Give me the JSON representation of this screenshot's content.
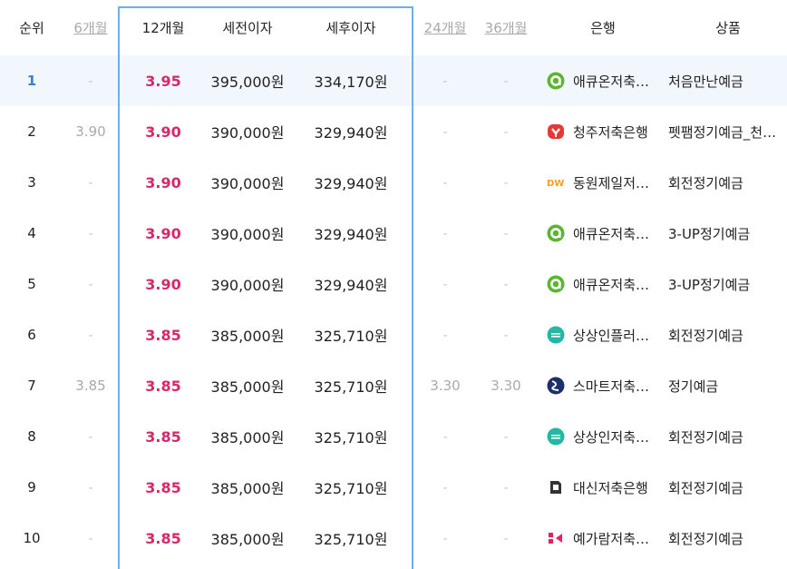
{
  "header": {
    "rank": "순위",
    "m6": "6개월",
    "m12": "12개월",
    "pre_tax": "세전이자",
    "post_tax": "세후이자",
    "m24": "24개월",
    "m36": "36개월",
    "bank": "은행",
    "product": "상품"
  },
  "colors": {
    "rate": "#d6286a",
    "highlight": "#6fb0ec",
    "selected_row": "#f2f7fd"
  },
  "rows": [
    {
      "rank": "1",
      "m6": "-",
      "m12": "3.95",
      "pre": "395,000원",
      "post": "334,170원",
      "m24": "-",
      "m36": "-",
      "logo": "acuon-logo",
      "bank": "애큐온저축…",
      "product": "처음만난예금"
    },
    {
      "rank": "2",
      "m6": "3.90",
      "m12": "3.90",
      "pre": "390,000원",
      "post": "329,940원",
      "m24": "-",
      "m36": "-",
      "logo": "cheongju-logo",
      "bank": "청주저축은행",
      "product": "펫팸정기예금_천…"
    },
    {
      "rank": "3",
      "m6": "-",
      "m12": "3.90",
      "pre": "390,000원",
      "post": "329,940원",
      "m24": "-",
      "m36": "-",
      "logo": "dongwon-logo",
      "bank": "동원제일저…",
      "product": "회전정기예금"
    },
    {
      "rank": "4",
      "m6": "-",
      "m12": "3.90",
      "pre": "390,000원",
      "post": "329,940원",
      "m24": "-",
      "m36": "-",
      "logo": "acuon-logo",
      "bank": "애큐온저축…",
      "product": "3-UP정기예금"
    },
    {
      "rank": "5",
      "m6": "-",
      "m12": "3.90",
      "pre": "390,000원",
      "post": "329,940원",
      "m24": "-",
      "m36": "-",
      "logo": "acuon-logo",
      "bank": "애큐온저축…",
      "product": "3-UP정기예금"
    },
    {
      "rank": "6",
      "m6": "-",
      "m12": "3.85",
      "pre": "385,000원",
      "post": "325,710원",
      "m24": "-",
      "m36": "-",
      "logo": "sangsangin-logo",
      "bank": "상상인플러…",
      "product": "회전정기예금"
    },
    {
      "rank": "7",
      "m6": "3.85",
      "m12": "3.85",
      "pre": "385,000원",
      "post": "325,710원",
      "m24": "3.30",
      "m36": "3.30",
      "logo": "smart-logo",
      "bank": "스마트저축…",
      "product": "정기예금"
    },
    {
      "rank": "8",
      "m6": "-",
      "m12": "3.85",
      "pre": "385,000원",
      "post": "325,710원",
      "m24": "-",
      "m36": "-",
      "logo": "sangsangin-logo",
      "bank": "상상인저축…",
      "product": "회전정기예금"
    },
    {
      "rank": "9",
      "m6": "-",
      "m12": "3.85",
      "pre": "385,000원",
      "post": "325,710원",
      "m24": "-",
      "m36": "-",
      "logo": "daishin-logo",
      "bank": "대신저축은행",
      "product": "회전정기예금"
    },
    {
      "rank": "10",
      "m6": "-",
      "m12": "3.85",
      "pre": "385,000원",
      "post": "325,710원",
      "m24": "-",
      "m36": "-",
      "logo": "yegaram-logo",
      "bank": "예가람저축…",
      "product": "회전정기예금"
    }
  ]
}
